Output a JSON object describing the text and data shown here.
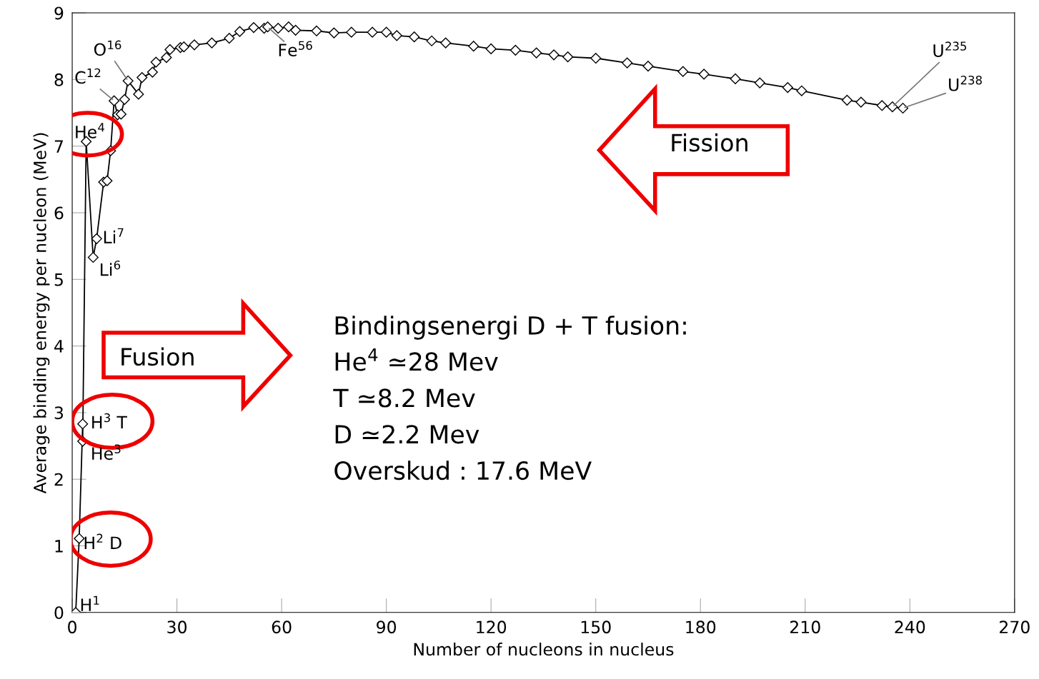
{
  "chart_data": {
    "type": "line",
    "xlabel": "Number of nucleons in nucleus",
    "ylabel": "Average binding energy per nucleon (MeV)",
    "xlim": [
      0,
      270
    ],
    "xticks": [
      0,
      30,
      60,
      90,
      120,
      150,
      180,
      210,
      240,
      270
    ],
    "ylim": [
      0,
      9
    ],
    "yticks": [
      0,
      1,
      2,
      3,
      4,
      5,
      6,
      7,
      8,
      9
    ],
    "grid": false,
    "legend": false,
    "marker": "diamond",
    "line_style": "solid",
    "series": [
      {
        "color": "#000000",
        "x": [
          1,
          2,
          3,
          3,
          4,
          6,
          7,
          9,
          10,
          11,
          12,
          13,
          14,
          15,
          16,
          19,
          20,
          23,
          24,
          27,
          28,
          31,
          32,
          35,
          40,
          45,
          48,
          52,
          55,
          56,
          59,
          62,
          64,
          70,
          75,
          80,
          86,
          90,
          93,
          98,
          103,
          107,
          115,
          120,
          127,
          133,
          138,
          142,
          150,
          159,
          165,
          175,
          181,
          190,
          197,
          205,
          209,
          222,
          226,
          232,
          235,
          238
        ],
        "values": [
          0,
          1.11,
          2.83,
          2.57,
          7.07,
          5.33,
          5.61,
          6.46,
          6.48,
          6.93,
          7.68,
          7.47,
          7.48,
          7.7,
          7.98,
          7.78,
          8.03,
          8.11,
          8.26,
          8.33,
          8.45,
          8.48,
          8.49,
          8.52,
          8.55,
          8.62,
          8.72,
          8.78,
          8.77,
          8.79,
          8.77,
          8.79,
          8.74,
          8.73,
          8.7,
          8.71,
          8.71,
          8.71,
          8.66,
          8.64,
          8.58,
          8.55,
          8.5,
          8.46,
          8.44,
          8.4,
          8.37,
          8.34,
          8.32,
          8.25,
          8.2,
          8.12,
          8.08,
          8.01,
          7.95,
          7.88,
          7.83,
          7.69,
          7.66,
          7.61,
          7.59,
          7.57
        ]
      }
    ],
    "annotations": [
      {
        "text": "H$^{1}$",
        "x": 1,
        "y": 0
      },
      {
        "text": "H$^{2}$ D",
        "x": 2,
        "y": 1.11
      },
      {
        "text": "H$^{3}$ T",
        "x": 3,
        "y": 2.83
      },
      {
        "text": "He$^{3}$",
        "x": 3,
        "y": 2.57
      },
      {
        "text": "He$^{4}$",
        "x": 4,
        "y": 7.07
      },
      {
        "text": "Li$^{6}$",
        "x": 6,
        "y": 5.33
      },
      {
        "text": "Li$^{7}$",
        "x": 7,
        "y": 5.61
      },
      {
        "text": "C$^{12}$",
        "x": 12,
        "y": 7.68
      },
      {
        "text": "O$^{16}$",
        "x": 16,
        "y": 7.98
      },
      {
        "text": "Fe$^{56}$",
        "x": 56,
        "y": 8.79
      },
      {
        "text": "U$^{235}$",
        "x": 235,
        "y": 7.59
      },
      {
        "text": "U$^{238}$",
        "x": 238,
        "y": 7.57
      },
      "Fission",
      "Fusion",
      "Bindingsenergi D + T fusion:",
      "He$^{4}$ ≃28 Mev",
      "T ≃8.2 Mev",
      "D ≃2.2 Mev",
      "Overskud : 17.6 MeV"
    ]
  }
}
